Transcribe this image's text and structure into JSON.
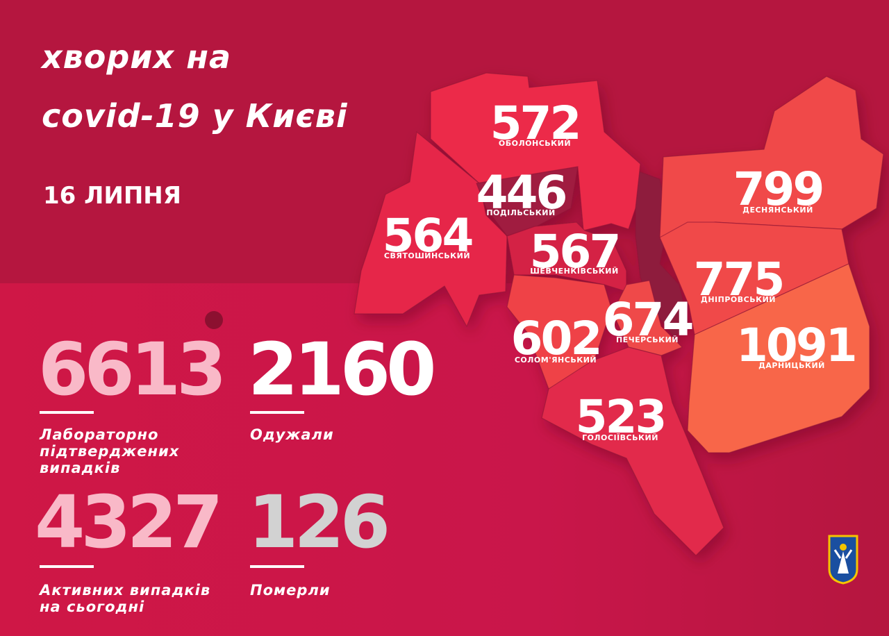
{
  "header": {
    "title_line1": "хворих на",
    "title_line2": "covid-19 у Києві",
    "date": "16 ЛИПНЯ"
  },
  "districts": [
    {
      "name": "ОБОЛОНСЬКИЙ",
      "count": "572",
      "color": "#ec2a48"
    },
    {
      "name": "ПОДІЛЬСЬКИЙ",
      "count": "446",
      "color": "#a01a40"
    },
    {
      "name": "СВЯТОШИНСЬКИЙ",
      "count": "564",
      "color": "#e6264a"
    },
    {
      "name": "ШЕВЧЕНКІВСЬКИЙ",
      "count": "567",
      "color": "#d42044"
    },
    {
      "name": "ДЕСНЯНСЬКИЙ",
      "count": "799",
      "color": "#f04848"
    },
    {
      "name": "ДНІПРОВСЬКИЙ",
      "count": "775",
      "color": "#f04848"
    },
    {
      "name": "ПЕЧЕРСЬКИЙ",
      "count": "674",
      "color": "#ef4a4a"
    },
    {
      "name": "СОЛОМ'ЯНСЬКИЙ",
      "count": "602",
      "color": "#ef4346"
    },
    {
      "name": "ДАРНИЦЬКИЙ",
      "count": "1091",
      "color": "#f8664a"
    },
    {
      "name": "ГОЛОСІЇВСЬКИЙ",
      "count": "523",
      "color": "#e22a4b"
    }
  ],
  "stats": [
    {
      "value": "6613",
      "label": "Лабораторно підтверджених випадків",
      "color": "#f9b9c8"
    },
    {
      "value": "2160",
      "label": "Одужали",
      "color": "#ffffff"
    },
    {
      "value": "4327",
      "label": "Активних випадків на сьогодні",
      "color": "#f9b9c8"
    },
    {
      "value": "126",
      "label": "Померли",
      "color": "#d2d2d2"
    }
  ],
  "icons": [
    "virus-icon",
    "kyiv-coat-of-arms-icon"
  ]
}
